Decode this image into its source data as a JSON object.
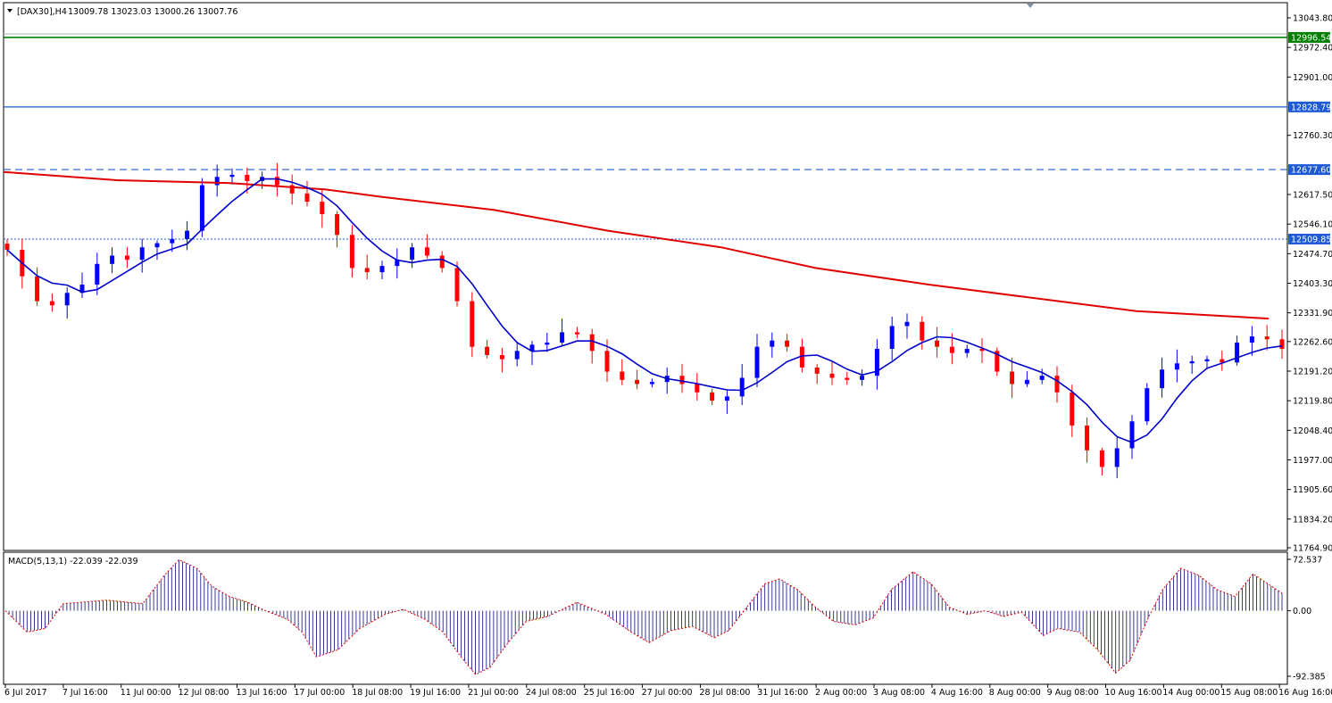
{
  "header": {
    "symbol": "[DAX30],H4",
    "ohlc": "13009.78 13023.03 13000.26 13007.76",
    "menu_icon": "triangle-down-icon"
  },
  "macd_header": {
    "label": "MACD(5,13,1) -22.039 -22.039"
  },
  "colors": {
    "bull_candle": "#0000ff",
    "bear_candle": "#ff0000",
    "ma_slow": "#e00000",
    "ma_fast": "#0000cc",
    "level_green": "#008000",
    "level_blue": "#1e5ad6",
    "histogram": "#0a0a7a",
    "signal": "#e00000"
  },
  "chart_data": [
    {
      "type": "candlestick",
      "title": "",
      "price_axis_ticks": [
        "13043.80",
        "12972.40",
        "12901.00",
        "12760.30",
        "12617.50",
        "12546.10",
        "12474.70",
        "12403.30",
        "12331.90",
        "12262.60",
        "12191.20",
        "12119.80",
        "12048.40",
        "11977.00",
        "11905.60",
        "11834.20",
        "11764.90"
      ],
      "price_labels": [
        "12996.54",
        "12828.79",
        "12677.60",
        "12509.85"
      ],
      "ylim": [
        11764.9,
        13043.8
      ],
      "time_axis_labels": [
        "6 Jul 2017",
        "7 Jul 16:00",
        "11 Jul 00:00",
        "12 Jul 08:00",
        "13 Jul 16:00",
        "17 Jul 00:00",
        "18 Jul 08:00",
        "19 Jul 16:00",
        "21 Jul 00:00",
        "24 Jul 08:00",
        "25 Jul 16:00",
        "27 Jul 00:00",
        "28 Jul 08:00",
        "31 Jul 16:00",
        "2 Aug 00:00",
        "3 Aug 08:00",
        "4 Aug 16:00",
        "8 Aug 00:00",
        "9 Aug 08:00",
        "10 Aug 16:00",
        "14 Aug 00:00",
        "15 Aug 08:00",
        "16 Aug 16:00"
      ],
      "close_path": [
        12484,
        12420,
        12360,
        12350,
        12380,
        12400,
        12450,
        12470,
        12460,
        12490,
        12500,
        12510,
        12530,
        12640,
        12660,
        12665,
        12650,
        12660,
        12640,
        12620,
        12600,
        12570,
        12520,
        12440,
        12430,
        12445,
        12460,
        12490,
        12470,
        12440,
        12360,
        12250,
        12230,
        12220,
        12240,
        12255,
        12260,
        12285,
        12280,
        12240,
        12190,
        12170,
        12160,
        12165,
        12180,
        12160,
        12140,
        12120,
        12130,
        12175,
        12250,
        12265,
        12250,
        12200,
        12185,
        12175,
        12170,
        12180,
        12245,
        12300,
        12310,
        12265,
        12250,
        12235,
        12245,
        12240,
        12190,
        12160,
        12170,
        12180,
        12140,
        12060,
        12000,
        11960,
        12005,
        12070,
        12150,
        12195,
        12210,
        12215,
        12220,
        12212,
        12260,
        12275,
        12268,
        12245
      ],
      "levels": [
        {
          "price": 12996.54,
          "style": "solid",
          "label": "12996.54"
        },
        {
          "price": 12828.79,
          "style": "solid",
          "label": "12828.79"
        },
        {
          "price": 12677.6,
          "style": "dashed",
          "label": "12677.60"
        },
        {
          "price": 12509.85,
          "style": "dotted",
          "label": "12509.85"
        }
      ]
    },
    {
      "type": "histogram",
      "title": "MACD(5,13,1) -22.039 -22.039",
      "axis_ticks": [
        "72.537",
        "0.00",
        "-92.385"
      ],
      "ylim": [
        -92.385,
        72.537
      ],
      "keypoints": [
        [
          0,
          0
        ],
        [
          6,
          -30
        ],
        [
          11,
          -25
        ],
        [
          16,
          10
        ],
        [
          28,
          15
        ],
        [
          38,
          10
        ],
        [
          44,
          50
        ],
        [
          48,
          72
        ],
        [
          53,
          60
        ],
        [
          57,
          35
        ],
        [
          62,
          20
        ],
        [
          67,
          12
        ],
        [
          72,
          0
        ],
        [
          78,
          -12
        ],
        [
          82,
          -30
        ],
        [
          86,
          -65
        ],
        [
          92,
          -55
        ],
        [
          98,
          -25
        ],
        [
          105,
          -5
        ],
        [
          110,
          2
        ],
        [
          116,
          -12
        ],
        [
          121,
          -30
        ],
        [
          126,
          -65
        ],
        [
          130,
          -90
        ],
        [
          134,
          -80
        ],
        [
          139,
          -45
        ],
        [
          144,
          -15
        ],
        [
          150,
          -8
        ],
        [
          158,
          12
        ],
        [
          166,
          -5
        ],
        [
          173,
          -30
        ],
        [
          178,
          -45
        ],
        [
          184,
          -28
        ],
        [
          190,
          -22
        ],
        [
          196,
          -38
        ],
        [
          200,
          -28
        ],
        [
          205,
          5
        ],
        [
          210,
          38
        ],
        [
          214,
          45
        ],
        [
          219,
          30
        ],
        [
          224,
          5
        ],
        [
          229,
          -15
        ],
        [
          235,
          -20
        ],
        [
          240,
          -10
        ],
        [
          245,
          30
        ],
        [
          251,
          55
        ],
        [
          256,
          38
        ],
        [
          261,
          5
        ],
        [
          266,
          -5
        ],
        [
          271,
          0
        ],
        [
          276,
          -8
        ],
        [
          281,
          -2
        ],
        [
          287,
          -35
        ],
        [
          291,
          -25
        ],
        [
          297,
          -30
        ],
        [
          302,
          -55
        ],
        [
          307,
          -88
        ],
        [
          311,
          -70
        ],
        [
          316,
          -10
        ],
        [
          320,
          30
        ],
        [
          325,
          60
        ],
        [
          330,
          50
        ],
        [
          335,
          30
        ],
        [
          340,
          20
        ],
        [
          345,
          52
        ],
        [
          350,
          35
        ],
        [
          353,
          25
        ]
      ]
    }
  ]
}
